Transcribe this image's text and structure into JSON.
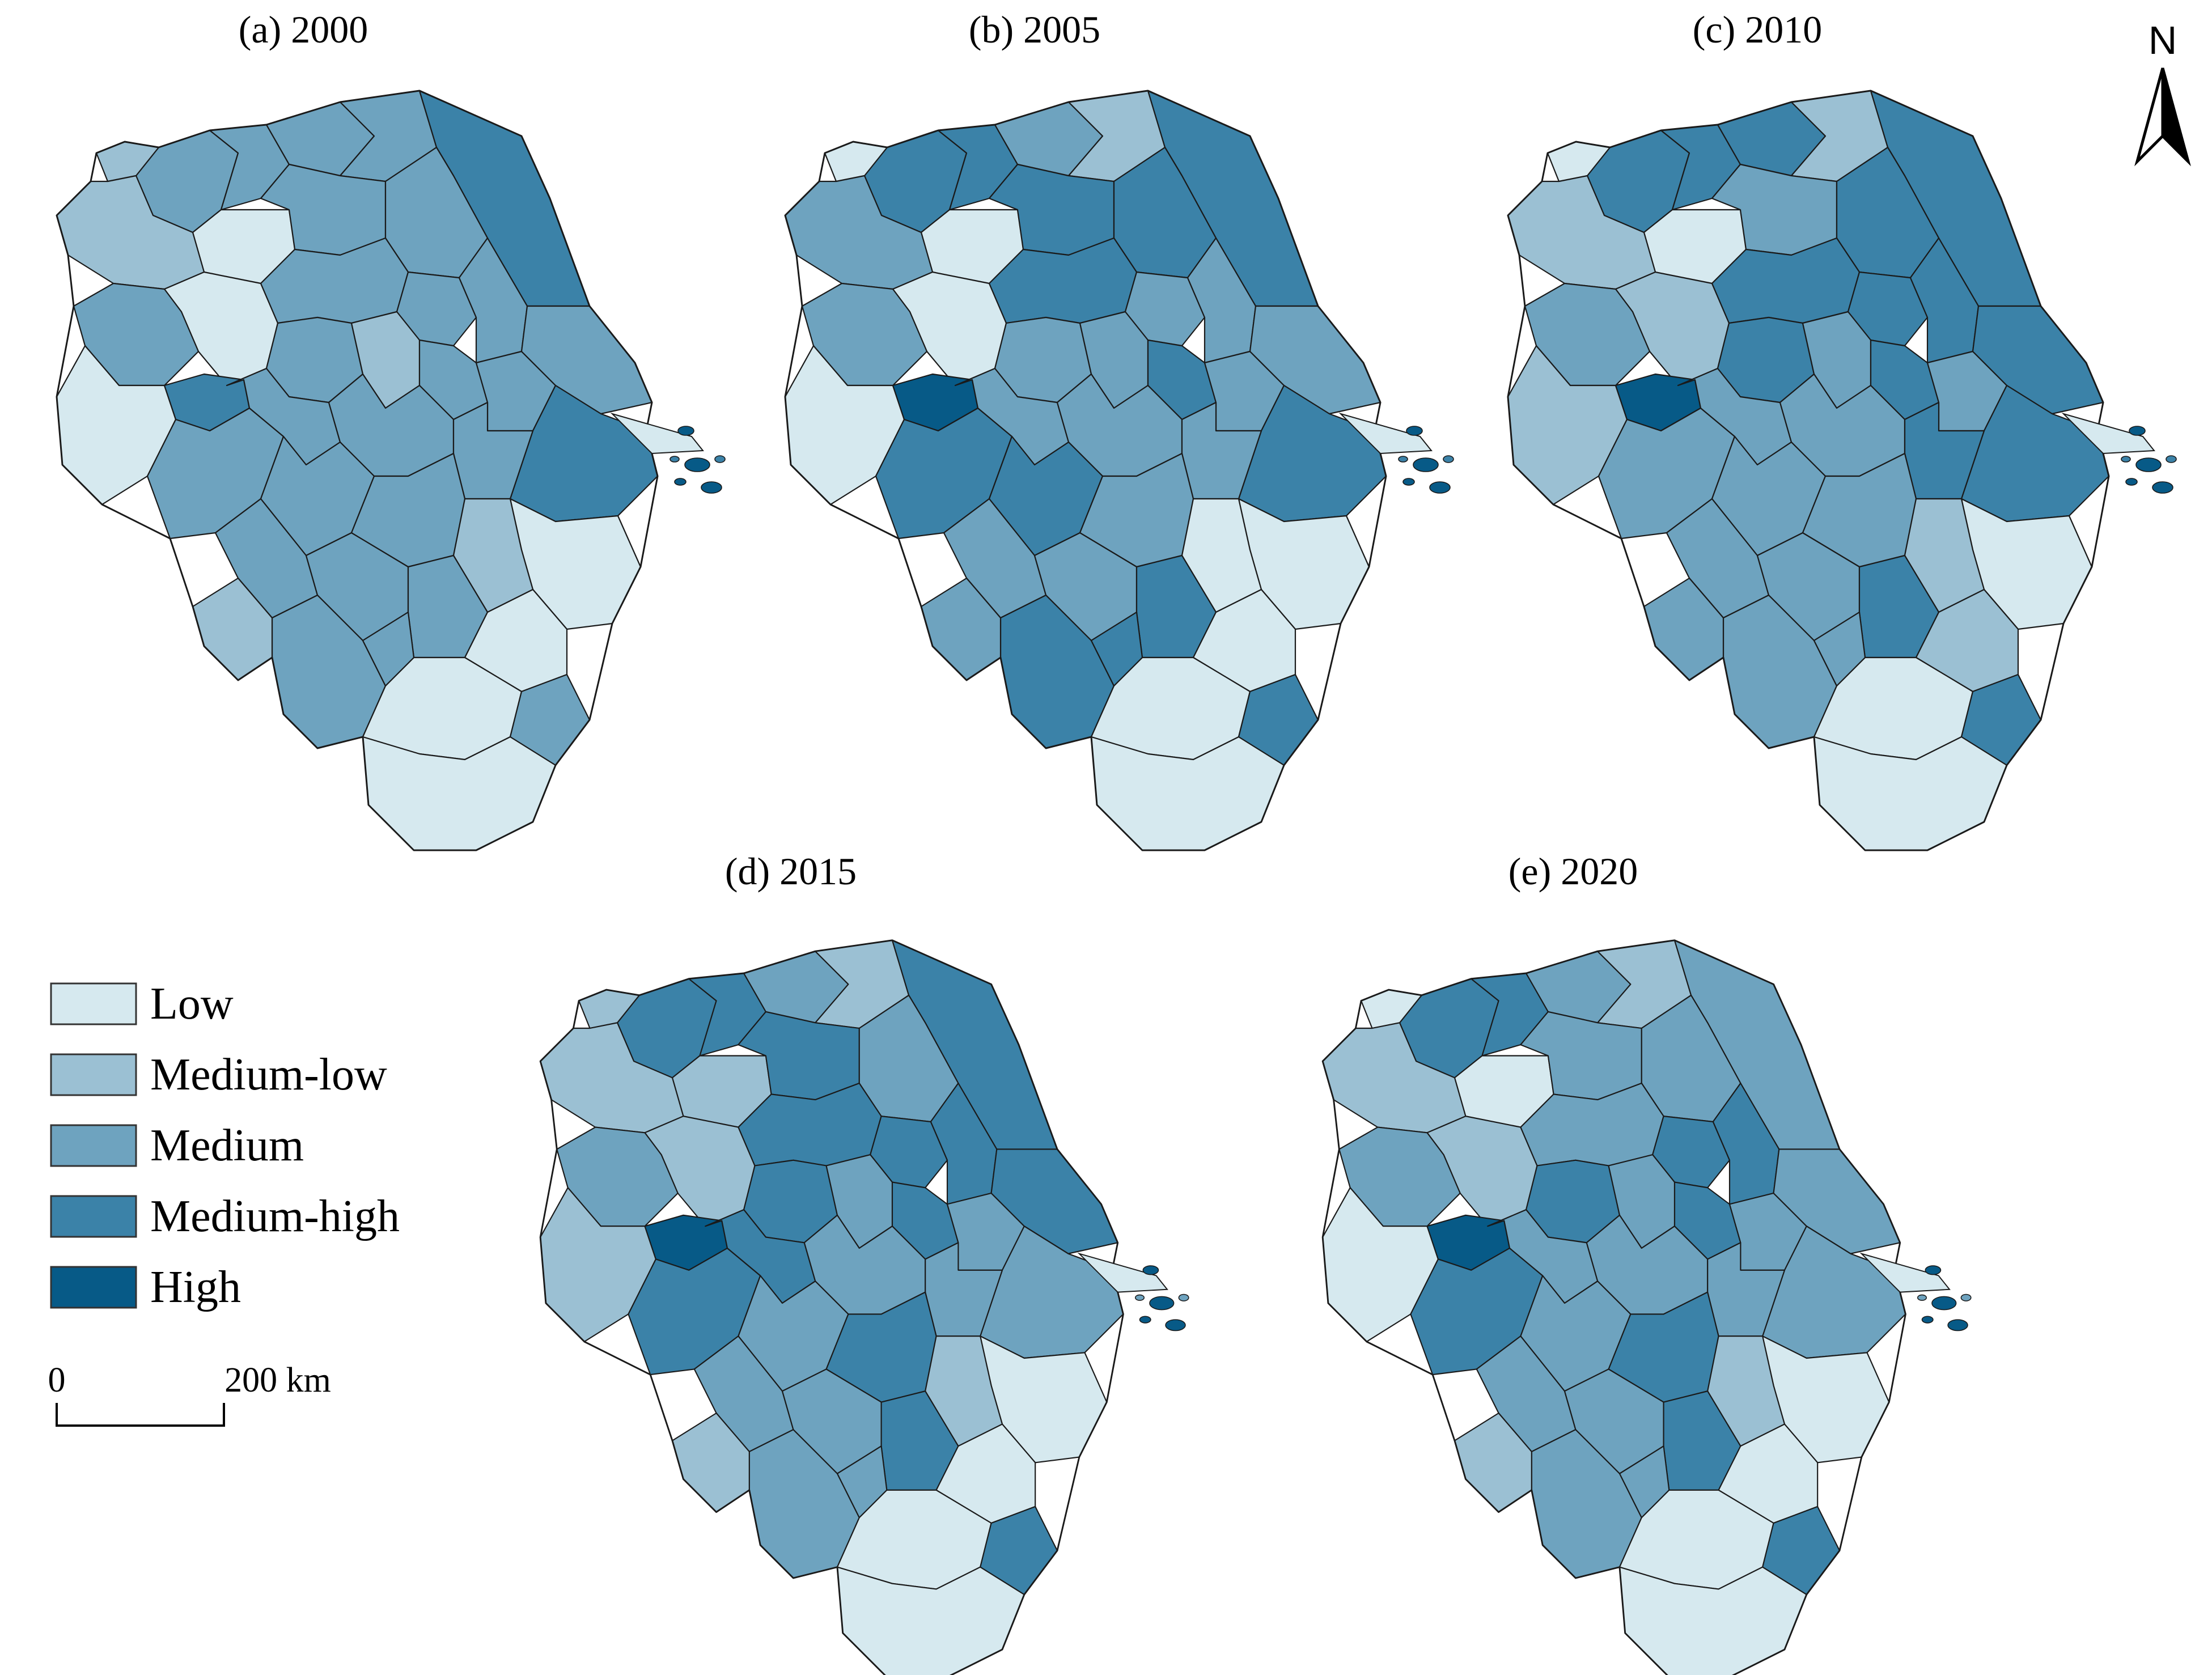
{
  "figure": {
    "panels": [
      {
        "id": "a",
        "title": "(a) 2000",
        "classes": [
          "Medium",
          "Medium-low",
          "Medium",
          "Medium",
          "Medium",
          "Medium-high",
          "Low",
          "Medium",
          "Medium",
          "Medium-low",
          "Low",
          "Medium",
          "Medium",
          "Medium",
          "Medium",
          "Medium-low",
          "Medium",
          "Medium",
          "Medium",
          "Medium-high",
          "Medium",
          "Low",
          "Medium-high",
          "Medium",
          "Medium",
          "Medium",
          "Medium",
          "Medium",
          "Medium",
          "Low",
          "Medium-low",
          "Medium",
          "Medium",
          "Medium",
          "Low",
          "Medium",
          "Low",
          "Medium-low",
          "Medium",
          "Medium",
          "Low"
        ]
      },
      {
        "id": "b",
        "title": "(b) 2005",
        "classes": [
          "Medium-high",
          "Low",
          "Medium-high",
          "Medium",
          "Medium-low",
          "Medium-high",
          "Low",
          "Medium-high",
          "Medium-high",
          "Medium",
          "Low",
          "Medium-high",
          "Medium",
          "Medium",
          "Medium",
          "Medium",
          "Medium-high",
          "Medium",
          "Medium",
          "Medium-high",
          "Medium",
          "Low",
          "High",
          "Medium-high",
          "Medium",
          "Medium",
          "Medium",
          "Medium-high",
          "Medium",
          "Low",
          "Low",
          "Medium",
          "Medium",
          "Medium-high",
          "Low",
          "Medium-high",
          "Low",
          "Medium",
          "Medium-high",
          "Medium-high",
          "Low"
        ]
      },
      {
        "id": "c",
        "title": "(c) 2010",
        "classes": [
          "Medium-high",
          "Low",
          "Medium-high",
          "Medium-high",
          "Medium-low",
          "Medium-high",
          "Low",
          "Medium",
          "Medium-high",
          "Medium-low",
          "Medium-low",
          "Medium-high",
          "Medium-high",
          "Medium-high",
          "Medium-high",
          "Medium",
          "Medium-high",
          "Medium",
          "Medium-high",
          "Medium-high",
          "Medium",
          "Medium-low",
          "High",
          "Medium",
          "Medium",
          "Medium",
          "Medium-high",
          "Medium",
          "Medium",
          "Low",
          "Medium-low",
          "Medium",
          "Medium",
          "Medium-high",
          "Medium-low",
          "Medium",
          "Low",
          "Medium",
          "Medium",
          "Medium-high",
          "Low"
        ]
      },
      {
        "id": "d",
        "title": "(d) 2015",
        "classes": [
          "Medium-high",
          "Medium-low",
          "Medium-high",
          "Medium",
          "Medium-low",
          "Medium-high",
          "Medium-low",
          "Medium-high",
          "Medium",
          "Medium-low",
          "Medium-low",
          "Medium-high",
          "Medium-high",
          "Medium-high",
          "Medium-high",
          "Medium",
          "Medium-high",
          "Medium",
          "Medium-high",
          "Medium",
          "Medium",
          "Medium-low",
          "High",
          "Medium-high",
          "Medium-high",
          "Medium",
          "Medium",
          "Medium",
          "Medium-high",
          "Low",
          "Medium-low",
          "Medium",
          "Medium",
          "Medium-high",
          "Low",
          "Medium",
          "Low",
          "Medium-low",
          "Medium",
          "Medium-high",
          "Low"
        ]
      },
      {
        "id": "e",
        "title": "(e) 2020",
        "classes": [
          "Medium-high",
          "Low",
          "Medium-high",
          "Medium",
          "Medium-low",
          "Medium",
          "Low",
          "Medium",
          "Medium",
          "Medium-low",
          "Medium-low",
          "Medium",
          "Medium-high",
          "Medium-high",
          "Medium-high",
          "Medium",
          "Medium-high",
          "Medium",
          "Medium",
          "Medium",
          "Medium",
          "Low",
          "High",
          "Medium-high",
          "Medium",
          "Medium",
          "Medium",
          "Medium",
          "Medium-high",
          "Low",
          "Medium-low",
          "Medium",
          "Medium",
          "Medium-high",
          "Low",
          "Medium",
          "Low",
          "Medium-low",
          "Medium",
          "Medium-high",
          "Low"
        ]
      }
    ]
  },
  "legend": {
    "items": [
      {
        "label": "Low",
        "color": "#d6e9ef"
      },
      {
        "label": "Medium-low",
        "color": "#9bc0d3"
      },
      {
        "label": "Medium",
        "color": "#6ea3bf"
      },
      {
        "label": "Medium-high",
        "color": "#3b82a8"
      },
      {
        "label": "High",
        "color": "#075a87"
      }
    ]
  },
  "scale_bar": {
    "start_label": "0",
    "end_label": "200 km"
  },
  "north_arrow": {
    "label": "N",
    "icon": "north-arrow-icon"
  }
}
